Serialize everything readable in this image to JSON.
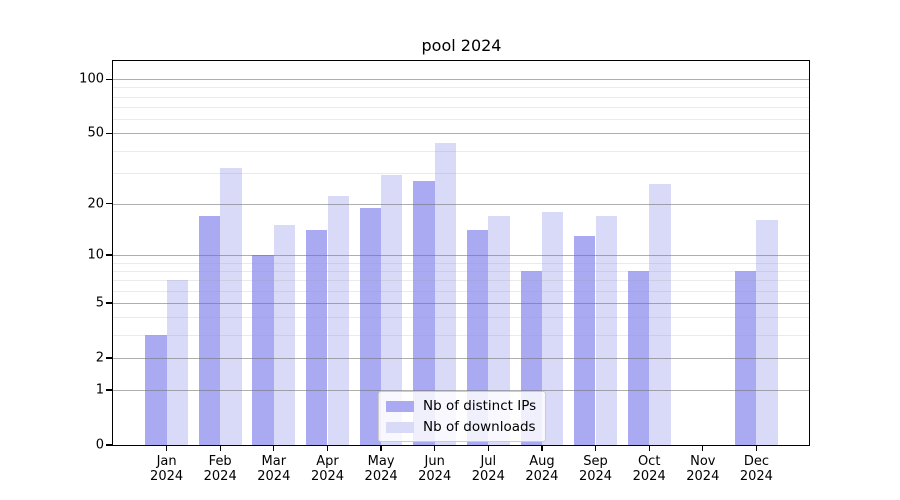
{
  "title": "pool 2024",
  "year_label": "2024",
  "colors": {
    "ips_bar": "#aaaaf2",
    "downloads_bar": "#d9d9f8",
    "grid_major": "#6e6e6e",
    "grid_minor": "#e4e4e4",
    "spine": "#000000",
    "background": "#ffffff"
  },
  "legend": {
    "entries": [
      {
        "label": "Nb of distinct IPs",
        "series_key": "ips"
      },
      {
        "label": "Nb of downloads",
        "series_key": "downloads"
      }
    ]
  },
  "chart_data": {
    "type": "bar",
    "title": "pool 2024",
    "xlabel": "",
    "ylabel": "",
    "y_scale": "log1p",
    "ylim": [
      0,
      126
    ],
    "yticks": [
      0,
      1,
      2,
      5,
      10,
      20,
      50,
      100
    ],
    "minor_yticks": [
      3,
      4,
      6,
      7,
      8,
      9,
      30,
      40,
      60,
      70,
      80,
      90
    ],
    "grid": "on",
    "legend_position": "lower-center",
    "categories": [
      "Jan",
      "Feb",
      "Mar",
      "Apr",
      "May",
      "Jun",
      "Jul",
      "Aug",
      "Sep",
      "Oct",
      "Nov",
      "Dec"
    ],
    "categories_year": "2024",
    "series": [
      {
        "name": "Nb of distinct IPs",
        "key": "ips",
        "color": "#aaaaf2",
        "values": [
          3,
          17,
          10,
          14,
          19,
          27,
          14,
          8,
          13,
          8,
          0,
          8
        ]
      },
      {
        "name": "Nb of downloads",
        "key": "downloads",
        "color": "#d9d9f8",
        "values": [
          7,
          32,
          15,
          22,
          29,
          44,
          17,
          18,
          17,
          26,
          0,
          16
        ]
      }
    ]
  }
}
